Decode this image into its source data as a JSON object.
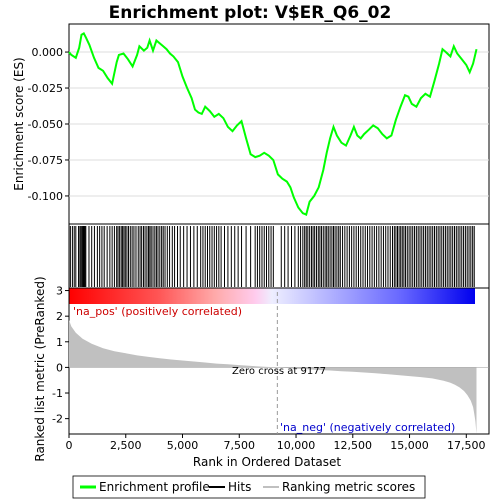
{
  "chart_data": {
    "type": "line",
    "title": "Enrichment plot: V$ER_Q6_02",
    "xlabel": "Rank in Ordered Dataset",
    "ylabel_top": "Enrichment score (ES)",
    "ylabel_bottom": "Ranked list metric (PreRanked)",
    "xlim": [
      0,
      18500
    ],
    "x_ticks": [
      0,
      2500,
      5000,
      7500,
      10000,
      12500,
      15000,
      17500
    ],
    "x_tick_labels": [
      "0",
      "2,500",
      "5,000",
      "7,500",
      "10,000",
      "12,500",
      "15,000",
      "17,500"
    ],
    "es_ylim": [
      -0.1195,
      0.0195
    ],
    "es_ticks": [
      0.0,
      -0.025,
      -0.05,
      -0.075,
      -0.1
    ],
    "es_tick_labels": [
      "0.000",
      "-0.025",
      "-0.050",
      "-0.075",
      "-0.100"
    ],
    "metric_ylim": [
      -2.6,
      3.1
    ],
    "metric_ticks": [
      3,
      2,
      1,
      0,
      -1,
      -2
    ],
    "metric_tick_labels": [
      "3",
      "2",
      "1",
      "0",
      "-1",
      "-2"
    ],
    "enrichment_profile": {
      "name": "Enrichment profile",
      "color": "#00ff00",
      "x": [
        0,
        100,
        300,
        450,
        550,
        650,
        750,
        900,
        1100,
        1300,
        1500,
        1700,
        1900,
        2100,
        2200,
        2400,
        2600,
        2800,
        3000,
        3100,
        3300,
        3450,
        3550,
        3700,
        3850,
        4000,
        4150,
        4300,
        4450,
        4600,
        4800,
        5000,
        5200,
        5400,
        5550,
        5700,
        5850,
        6000,
        6200,
        6400,
        6600,
        6800,
        7000,
        7200,
        7400,
        7600,
        7800,
        8000,
        8200,
        8400,
        8600,
        8800,
        9000,
        9200,
        9400,
        9600,
        9750,
        9900,
        10100,
        10300,
        10450,
        10600,
        10800,
        11000,
        11200,
        11350,
        11500,
        11650,
        11800,
        12000,
        12200,
        12400,
        12550,
        12700,
        12850,
        13000,
        13200,
        13400,
        13600,
        13800,
        14000,
        14200,
        14400,
        14600,
        14800,
        14950,
        15100,
        15300,
        15500,
        15700,
        15900,
        16100,
        16300,
        16450,
        16600,
        16800,
        16950,
        17100,
        17300,
        17500,
        17650,
        17800,
        17950
      ],
      "y": [
        0.0,
        -0.002,
        -0.004,
        0.003,
        0.012,
        0.013,
        0.01,
        0.005,
        -0.004,
        -0.011,
        -0.013,
        -0.018,
        -0.022,
        -0.007,
        -0.002,
        -0.001,
        -0.005,
        -0.01,
        -0.002,
        0.004,
        0.001,
        0.003,
        0.008,
        0.001,
        0.008,
        0.006,
        0.004,
        0.002,
        -0.001,
        -0.003,
        -0.007,
        -0.017,
        -0.025,
        -0.032,
        -0.04,
        -0.042,
        -0.043,
        -0.038,
        -0.041,
        -0.045,
        -0.043,
        -0.046,
        -0.052,
        -0.055,
        -0.051,
        -0.048,
        -0.06,
        -0.071,
        -0.073,
        -0.072,
        -0.07,
        -0.072,
        -0.075,
        -0.085,
        -0.088,
        -0.09,
        -0.094,
        -0.101,
        -0.108,
        -0.112,
        -0.113,
        -0.104,
        -0.1,
        -0.094,
        -0.082,
        -0.07,
        -0.06,
        -0.052,
        -0.058,
        -0.063,
        -0.065,
        -0.058,
        -0.052,
        -0.058,
        -0.06,
        -0.057,
        -0.054,
        -0.051,
        -0.053,
        -0.057,
        -0.06,
        -0.058,
        -0.047,
        -0.038,
        -0.03,
        -0.031,
        -0.036,
        -0.038,
        -0.032,
        -0.029,
        -0.031,
        -0.02,
        -0.008,
        0.002,
        0.0,
        -0.003,
        0.004,
        -0.001,
        -0.005,
        -0.009,
        -0.014,
        -0.008,
        0.002
      ]
    },
    "ranked_metric": {
      "name": "Ranking metric scores",
      "color": "#c0c0c0",
      "x": [
        0,
        100,
        300,
        600,
        1000,
        1500,
        2000,
        2500,
        3000,
        3500,
        4000,
        4500,
        5000,
        5500,
        6000,
        6500,
        7000,
        7500,
        8000,
        8500,
        9177,
        9500,
        10000,
        10500,
        11000,
        11500,
        12000,
        12500,
        13000,
        13500,
        14000,
        14500,
        15000,
        15500,
        16000,
        16500,
        16800,
        17000,
        17200,
        17400,
        17550,
        17700,
        17800,
        17850,
        17900,
        17950
      ],
      "y": [
        1.85,
        1.6,
        1.35,
        1.12,
        0.92,
        0.75,
        0.63,
        0.55,
        0.47,
        0.41,
        0.36,
        0.31,
        0.27,
        0.23,
        0.19,
        0.15,
        0.12,
        0.09,
        0.06,
        0.03,
        0.0,
        -0.02,
        -0.05,
        -0.07,
        -0.1,
        -0.12,
        -0.15,
        -0.17,
        -0.2,
        -0.23,
        -0.26,
        -0.3,
        -0.34,
        -0.38,
        -0.43,
        -0.52,
        -0.6,
        -0.68,
        -0.78,
        -0.92,
        -1.08,
        -1.3,
        -1.55,
        -1.8,
        -2.1,
        -2.6
      ]
    },
    "hits_label": "Hits",
    "hit_positions": [
      60,
      150,
      230,
      300,
      420,
      480,
      530,
      580,
      620,
      660,
      700,
      740,
      880,
      1000,
      1120,
      1250,
      1350,
      1450,
      1550,
      1680,
      1800,
      1900,
      2000,
      2100,
      2160,
      2230,
      2300,
      2360,
      2420,
      2480,
      2550,
      2620,
      2700,
      2780,
      2860,
      2950,
      3050,
      3130,
      3200,
      3280,
      3350,
      3430,
      3500,
      3560,
      3620,
      3700,
      3780,
      3850,
      3920,
      4000,
      4080,
      4150,
      4230,
      4330,
      4430,
      4550,
      4650,
      4780,
      4900,
      5050,
      5200,
      5350,
      5500,
      5650,
      5800,
      5900,
      6000,
      6100,
      6200,
      6300,
      6400,
      6500,
      6600,
      6700,
      6850,
      7000,
      7150,
      7300,
      7450,
      7600,
      7800,
      8000,
      8200,
      8300,
      8400,
      8500,
      8600,
      8700,
      8800,
      8900,
      9000,
      9350,
      9500,
      9650,
      9800,
      9950,
      10100,
      10200,
      10300,
      10380,
      10450,
      10520,
      10600,
      10680,
      10750,
      10820,
      10900,
      10980,
      11050,
      11120,
      11200,
      11280,
      11350,
      11420,
      11500,
      11580,
      11650,
      11720,
      11800,
      11880,
      11950,
      12050,
      12150,
      12250,
      12350,
      12450,
      12550,
      12650,
      12750,
      12850,
      12950,
      13050,
      13150,
      13250,
      13350,
      13450,
      13550,
      13650,
      13750,
      13850,
      13950,
      14050,
      14150,
      14250,
      14330,
      14400,
      14470,
      14540,
      14610,
      14680,
      14750,
      14820,
      14900,
      14980,
      15060,
      15140,
      15220,
      15300,
      15380,
      15460,
      15540,
      15620,
      15700,
      15780,
      15860,
      15940,
      16020,
      16100,
      16180,
      16260,
      16340,
      16420,
      16500,
      16580,
      16660,
      16740,
      16820,
      16900,
      16980,
      17060,
      17140,
      17220,
      17300,
      17380,
      17460,
      17540,
      17620,
      17700,
      17780,
      17850
    ],
    "pos_label": "'na_pos' (positively correlated)",
    "neg_label": "'na_neg' (negatively correlated)",
    "zero_cross_label": "Zero cross at 9177",
    "zero_cross": 9177,
    "legend": [
      {
        "name": "Enrichment profile",
        "color": "#00ff00"
      },
      {
        "name": "Hits",
        "color": "#000000"
      },
      {
        "name": "Ranking metric scores",
        "color": "#c0c0c0"
      }
    ],
    "legend_position": "bottom"
  }
}
